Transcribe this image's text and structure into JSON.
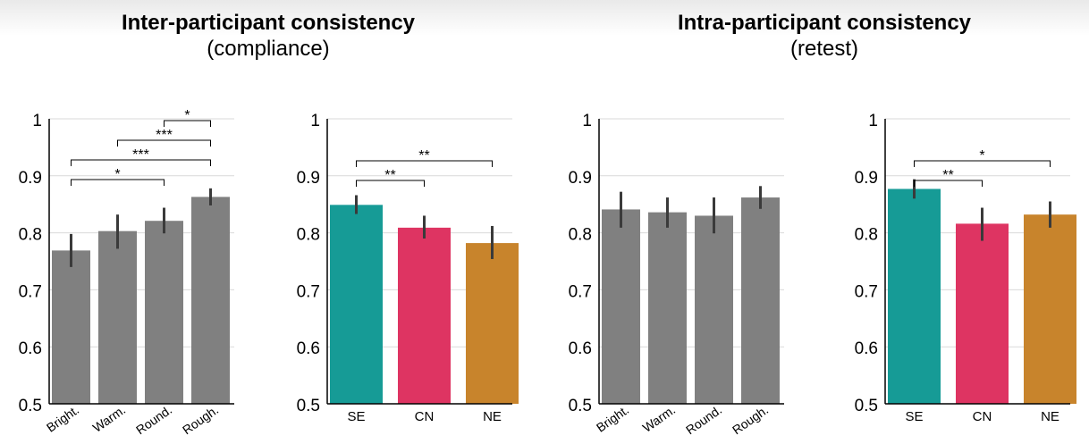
{
  "titles": [
    {
      "main": "Inter-participant consistency",
      "sub": "(compliance)"
    },
    {
      "main": "Intra-participant consistency",
      "sub": "(retest)"
    }
  ],
  "colors": {
    "gray": "#808080",
    "se": "#169b96",
    "cn": "#de3462",
    "ne": "#c8842c",
    "errorbar": "#3a3a3a",
    "grid": "#d9d9d9"
  },
  "chart_data": [
    {
      "type": "bar",
      "title": "",
      "xlabel": "",
      "ylabel": "",
      "ylim": [
        0.5,
        1.0
      ],
      "yticks": [
        "0.5",
        "0.6",
        "0.7",
        "0.8",
        "0.9",
        "1"
      ],
      "grid": true,
      "categories": [
        "Bright.",
        "Warm.",
        "Round.",
        "Rough."
      ],
      "values": [
        0.769,
        0.803,
        0.821,
        0.863
      ],
      "errors": [
        [
          0.74,
          0.798
        ],
        [
          0.772,
          0.832
        ],
        [
          0.799,
          0.844
        ],
        [
          0.848,
          0.878
        ]
      ],
      "bar_colors": [
        "gray",
        "gray",
        "gray",
        "gray"
      ],
      "rotated_labels": true,
      "significance": [
        {
          "from": 2,
          "to": 3,
          "label": "*"
        },
        {
          "from": 1,
          "to": 3,
          "label": "***"
        },
        {
          "from": 0,
          "to": 3,
          "label": "***"
        },
        {
          "from": 0,
          "to": 2,
          "label": "*"
        }
      ]
    },
    {
      "type": "bar",
      "title": "",
      "xlabel": "",
      "ylabel": "",
      "ylim": [
        0.5,
        1.0
      ],
      "yticks": [
        "0.5",
        "0.6",
        "0.7",
        "0.8",
        "0.9",
        "1"
      ],
      "grid": true,
      "categories": [
        "SE",
        "CN",
        "NE"
      ],
      "values": [
        0.849,
        0.809,
        0.782
      ],
      "errors": [
        [
          0.833,
          0.866
        ],
        [
          0.79,
          0.83
        ],
        [
          0.754,
          0.812
        ]
      ],
      "bar_colors": [
        "se",
        "cn",
        "ne"
      ],
      "rotated_labels": false,
      "significance": [
        {
          "from": 0,
          "to": 2,
          "label": "**"
        },
        {
          "from": 0,
          "to": 1,
          "label": "**"
        }
      ]
    },
    {
      "type": "bar",
      "title": "",
      "xlabel": "",
      "ylabel": "",
      "ylim": [
        0.5,
        1.0
      ],
      "yticks": [
        "0.5",
        "0.6",
        "0.7",
        "0.8",
        "0.9",
        "1"
      ],
      "grid": true,
      "categories": [
        "Bright.",
        "Warm.",
        "Round.",
        "Rough."
      ],
      "values": [
        0.841,
        0.836,
        0.83,
        0.862
      ],
      "errors": [
        [
          0.809,
          0.872
        ],
        [
          0.809,
          0.862
        ],
        [
          0.799,
          0.862
        ],
        [
          0.842,
          0.882
        ]
      ],
      "bar_colors": [
        "gray",
        "gray",
        "gray",
        "gray"
      ],
      "rotated_labels": true,
      "significance": []
    },
    {
      "type": "bar",
      "title": "",
      "xlabel": "",
      "ylabel": "",
      "ylim": [
        0.5,
        1.0
      ],
      "yticks": [
        "0.5",
        "0.6",
        "0.7",
        "0.8",
        "0.9",
        "1"
      ],
      "grid": true,
      "categories": [
        "SE",
        "CN",
        "NE"
      ],
      "values": [
        0.877,
        0.816,
        0.832
      ],
      "errors": [
        [
          0.86,
          0.894
        ],
        [
          0.786,
          0.844
        ],
        [
          0.809,
          0.855
        ]
      ],
      "bar_colors": [
        "se",
        "cn",
        "ne"
      ],
      "rotated_labels": false,
      "significance": [
        {
          "from": 0,
          "to": 2,
          "label": "*"
        },
        {
          "from": 0,
          "to": 1,
          "label": "**"
        }
      ]
    }
  ]
}
